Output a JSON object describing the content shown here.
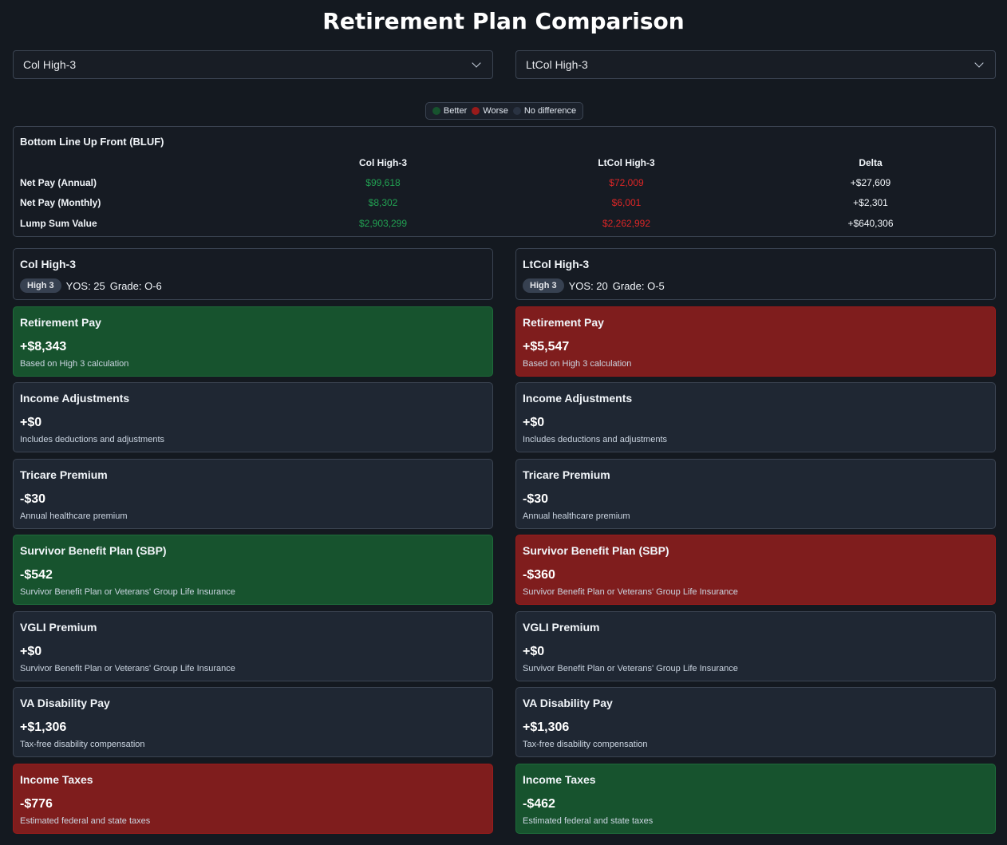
{
  "title": "Retirement Plan Comparison",
  "selects": {
    "left": "Col High-3",
    "right": "LtCol High-3"
  },
  "legend": {
    "better": {
      "label": "Better",
      "color": "#17532e"
    },
    "worse": {
      "label": "Worse",
      "color": "#991b1b"
    },
    "none": {
      "label": "No difference",
      "color": "#1f2733"
    }
  },
  "bluf": {
    "heading": "Bottom Line Up Front (BLUF)",
    "columns": [
      "Col High-3",
      "LtCol High-3",
      "Delta"
    ],
    "rows": [
      {
        "label": "Net Pay (Annual)",
        "left": "$99,618",
        "right": "$72,009",
        "delta": "+$27,609"
      },
      {
        "label": "Net Pay (Monthly)",
        "left": "$8,302",
        "right": "$6,001",
        "delta": "+$2,301"
      },
      {
        "label": "Lump Sum Value",
        "left": "$2,903,299",
        "right": "$2,262,992",
        "delta": "+$640,306"
      }
    ]
  },
  "plans": [
    {
      "name": "Col High-3",
      "badge": "High 3",
      "yos": "YOS: 25",
      "grade": "Grade: O-6",
      "cards": [
        {
          "title": "Retirement Pay",
          "value": "+$8,343",
          "desc": "Based on High 3 calculation",
          "status": "better"
        },
        {
          "title": "Income Adjustments",
          "value": "+$0",
          "desc": "Includes deductions and adjustments",
          "status": "none"
        },
        {
          "title": "Tricare Premium",
          "value": "-$30",
          "desc": "Annual healthcare premium",
          "status": "none"
        },
        {
          "title": "Survivor Benefit Plan (SBP)",
          "value": "-$542",
          "desc": "Survivor Benefit Plan or Veterans' Group Life Insurance",
          "status": "better"
        },
        {
          "title": "VGLI Premium",
          "value": "+$0",
          "desc": "Survivor Benefit Plan or Veterans' Group Life Insurance",
          "status": "none"
        },
        {
          "title": "VA Disability Pay",
          "value": "+$1,306",
          "desc": "Tax-free disability compensation",
          "status": "none"
        },
        {
          "title": "Income Taxes",
          "value": "-$776",
          "desc": "Estimated federal and state taxes",
          "status": "worse"
        }
      ]
    },
    {
      "name": "LtCol High-3",
      "badge": "High 3",
      "yos": "YOS: 20",
      "grade": "Grade: O-5",
      "cards": [
        {
          "title": "Retirement Pay",
          "value": "+$5,547",
          "desc": "Based on High 3 calculation",
          "status": "worse"
        },
        {
          "title": "Income Adjustments",
          "value": "+$0",
          "desc": "Includes deductions and adjustments",
          "status": "none"
        },
        {
          "title": "Tricare Premium",
          "value": "-$30",
          "desc": "Annual healthcare premium",
          "status": "none"
        },
        {
          "title": "Survivor Benefit Plan (SBP)",
          "value": "-$360",
          "desc": "Survivor Benefit Plan or Veterans' Group Life Insurance",
          "status": "worse"
        },
        {
          "title": "VGLI Premium",
          "value": "+$0",
          "desc": "Survivor Benefit Plan or Veterans' Group Life Insurance",
          "status": "none"
        },
        {
          "title": "VA Disability Pay",
          "value": "+$1,306",
          "desc": "Tax-free disability compensation",
          "status": "none"
        },
        {
          "title": "Income Taxes",
          "value": "-$462",
          "desc": "Estimated federal and state taxes",
          "status": "better"
        }
      ]
    }
  ]
}
